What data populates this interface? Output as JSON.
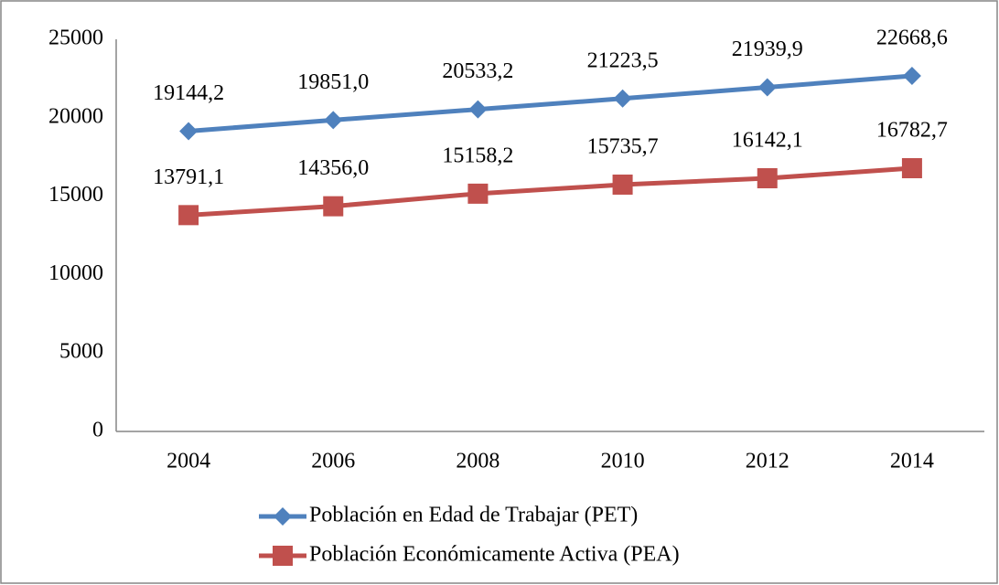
{
  "chart_data": {
    "type": "line",
    "categories": [
      "2004",
      "2006",
      "2008",
      "2010",
      "2012",
      "2014"
    ],
    "series": [
      {
        "name": "Población en Edad de Trabajar (PET)",
        "color": "#4f81bd",
        "marker": "diamond",
        "values": [
          19144.2,
          19851.0,
          20533.2,
          21223.5,
          21939.9,
          22668.6
        ],
        "value_labels": [
          "19144,2",
          "19851,0",
          "20533,2",
          "21223,5",
          "21939,9",
          "22668,6"
        ]
      },
      {
        "name": "Población Económicamente Activa (PEA)",
        "color": "#c0504d",
        "marker": "square",
        "values": [
          13791.1,
          14356.0,
          15158.2,
          15735.7,
          16142.1,
          16782.7
        ],
        "value_labels": [
          "13791,1",
          "14356,0",
          "15158,2",
          "15735,7",
          "16142,1",
          "16782,7"
        ]
      }
    ],
    "ylim": [
      0,
      25000
    ],
    "yticks": [
      0,
      5000,
      10000,
      15000,
      20000,
      25000
    ],
    "grid": false,
    "legend": "bottom"
  }
}
